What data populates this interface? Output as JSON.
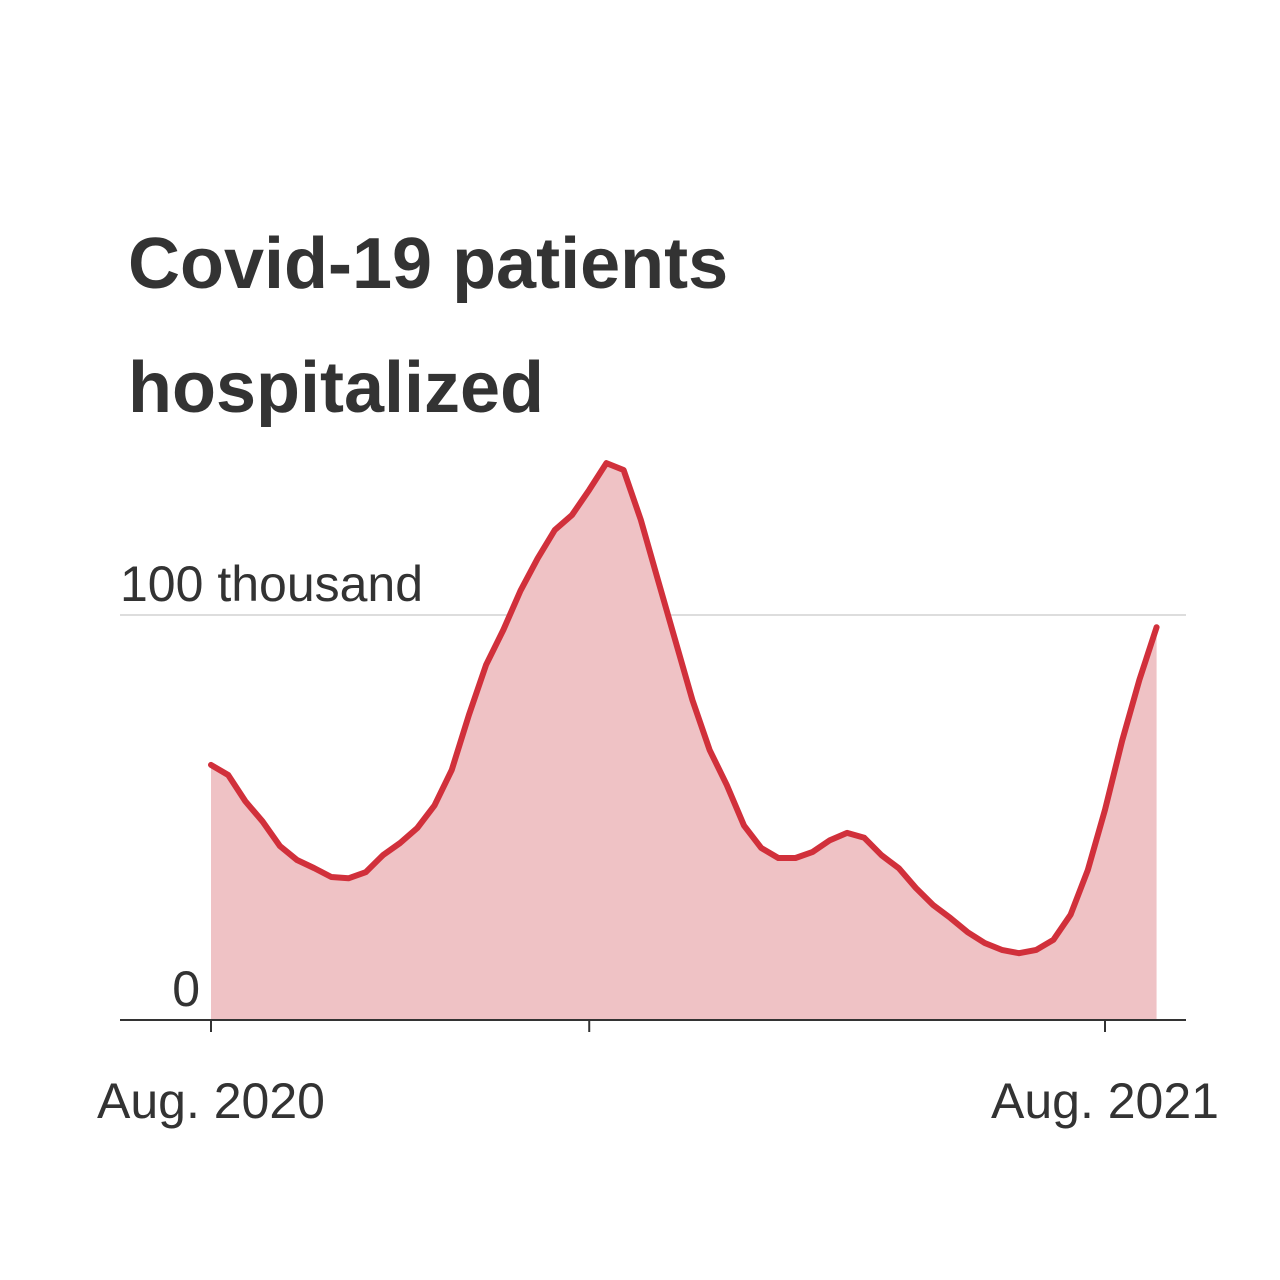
{
  "chart_data": {
    "type": "line",
    "title_lines": [
      "Covid-19 patients",
      "hospitalized"
    ],
    "categories": [
      "Aug. 2020",
      null,
      null,
      null,
      null,
      null,
      null,
      null,
      null,
      null,
      null,
      null,
      null,
      null,
      null,
      null,
      null,
      null,
      null,
      null,
      null,
      null,
      null,
      null,
      null,
      null,
      null,
      null,
      null,
      null,
      null,
      null,
      null,
      null,
      null,
      null,
      null,
      null,
      null,
      null,
      null,
      null,
      null,
      null,
      null,
      null,
      null,
      null,
      null,
      null,
      null,
      null,
      "Aug. 2021",
      null,
      null,
      null
    ],
    "series": [
      {
        "name": "Covid-19 patients hospitalized",
        "color": "#d1303b",
        "fill": "#efc2c5",
        "values": [
          63,
          60.5,
          54,
          49,
          43,
          39.5,
          37.5,
          35.3,
          35,
          36.5,
          40.7,
          43.7,
          47.4,
          53,
          61.7,
          75.3,
          87.7,
          96.3,
          106,
          114,
          121,
          124.7,
          130.9,
          137.5,
          135.8,
          123.5,
          108.6,
          93.8,
          79,
          66.7,
          58,
          48,
          42.5,
          40,
          40,
          41.5,
          44.4,
          46.2,
          45,
          40.7,
          37.5,
          32.6,
          28.4,
          25.2,
          21.7,
          19,
          17.3,
          16.5,
          17.3,
          19.8,
          26,
          37,
          51.9,
          69,
          84,
          97
        ]
      }
    ],
    "xticks": [
      0,
      22,
      52
    ],
    "ylim": [
      0,
      140
    ],
    "yticks": [
      0,
      {
        "value": 100,
        "label": "100 thousand"
      }
    ],
    "grid": true
  }
}
